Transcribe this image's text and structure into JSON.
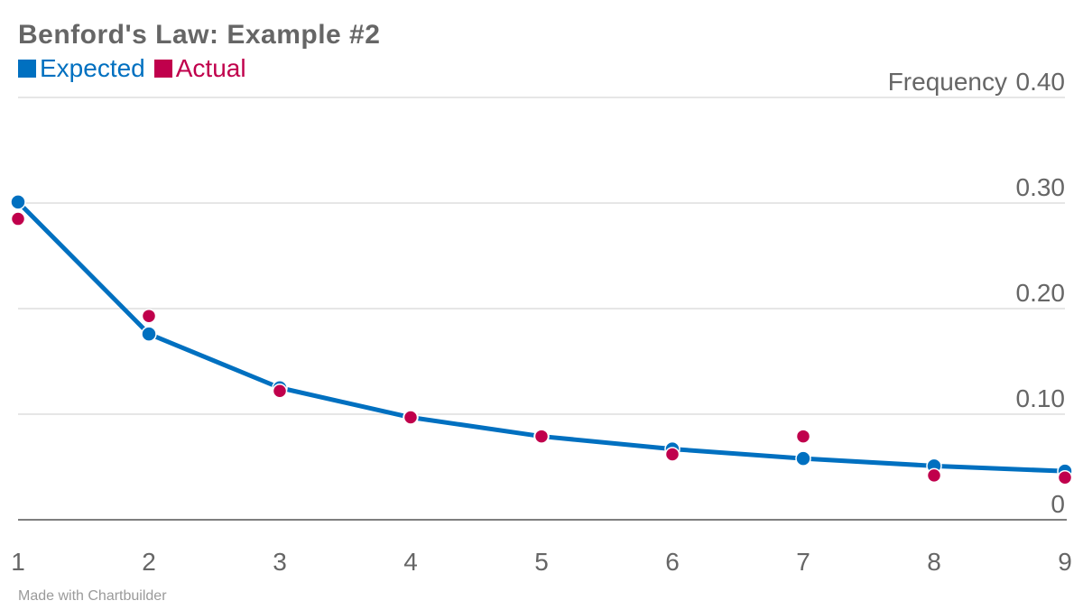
{
  "chart_data": {
    "type": "line",
    "title": "Benford's Law: Example #2",
    "ylabel": "Frequency",
    "x": [
      1,
      2,
      3,
      4,
      5,
      6,
      7,
      8,
      9
    ],
    "ylim": [
      0,
      0.4
    ],
    "yticks": [
      0,
      0.1,
      0.2,
      0.3,
      0.4
    ],
    "ytick_labels": [
      "0",
      "0.10",
      "0.20",
      "0.30",
      "0.40"
    ],
    "xtick_labels": [
      "1",
      "2",
      "3",
      "4",
      "5",
      "6",
      "7",
      "8",
      "9"
    ],
    "grid": true,
    "legend_position": "top-left",
    "series": [
      {
        "name": "Expected",
        "color": "#0070c0",
        "style": "line-with-markers",
        "values": [
          0.301,
          0.176,
          0.125,
          0.097,
          0.079,
          0.067,
          0.058,
          0.051,
          0.046
        ]
      },
      {
        "name": "Actual",
        "color": "#c0004c",
        "style": "markers",
        "values": [
          0.285,
          0.193,
          0.122,
          0.097,
          0.079,
          0.062,
          0.079,
          0.042,
          0.04
        ]
      }
    ]
  },
  "footer": "Made with Chartbuilder"
}
